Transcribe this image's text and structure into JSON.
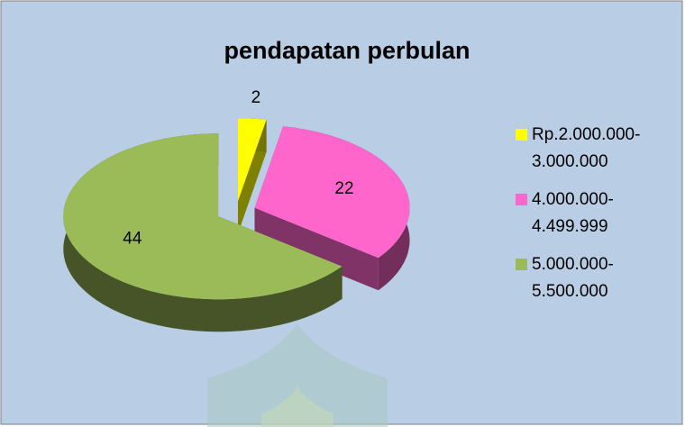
{
  "chart_data": {
    "type": "pie",
    "title": "pendapatan perbulan",
    "categories": [
      "Rp.2.000.000-3.000.000",
      "4.000.000-4.499.999",
      "5.000.000-5.500.000"
    ],
    "values": [
      2,
      22,
      44
    ],
    "colors": [
      "#ffff00",
      "#ff66cc",
      "#9bbb59"
    ],
    "legend": "right"
  }
}
